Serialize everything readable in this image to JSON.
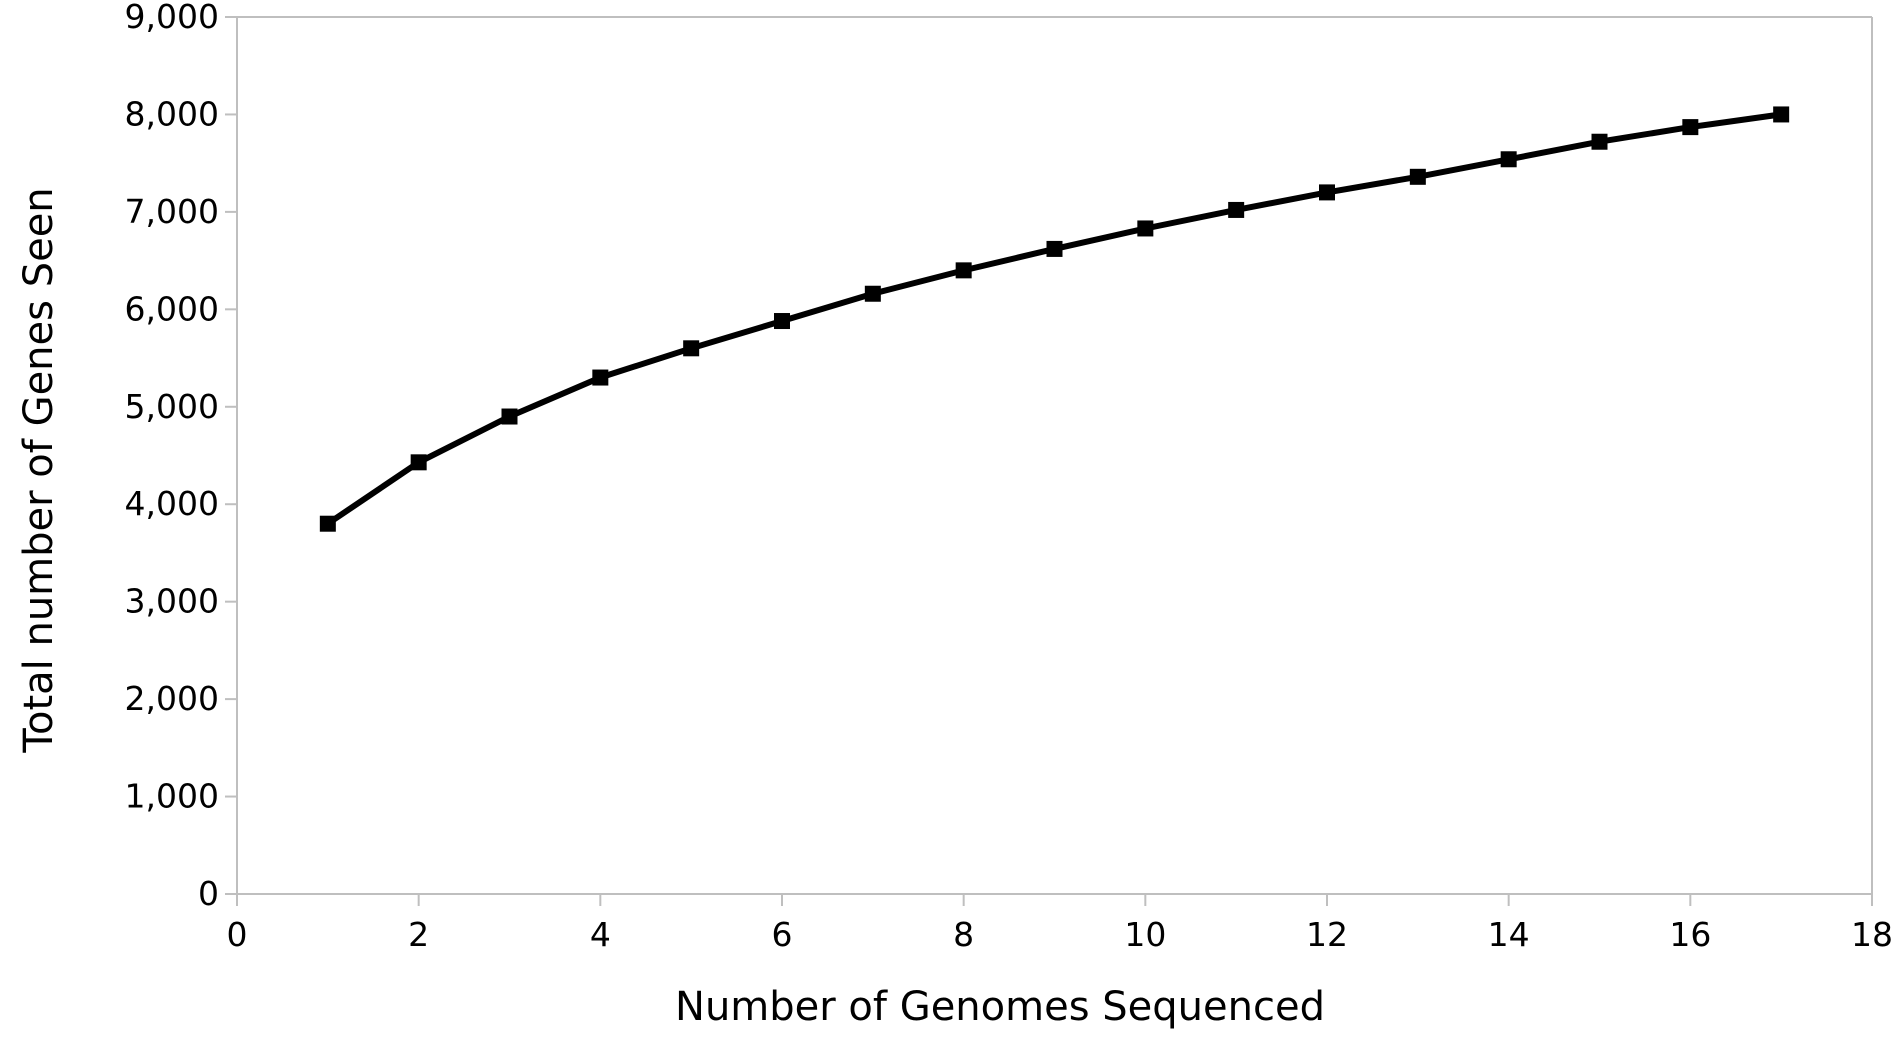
{
  "chart_data": {
    "type": "line",
    "title": "",
    "xlabel": "Number of Genomes Sequenced",
    "ylabel": "Total number of Genes Seen",
    "xlim": [
      0,
      18
    ],
    "ylim": [
      0,
      9000
    ],
    "x_ticks": [
      0,
      2,
      4,
      6,
      8,
      10,
      12,
      14,
      16,
      18
    ],
    "x_tick_labels": [
      "0",
      "2",
      "4",
      "6",
      "8",
      "10",
      "12",
      "14",
      "16",
      "18"
    ],
    "y_ticks": [
      0,
      1000,
      2000,
      3000,
      4000,
      5000,
      6000,
      7000,
      8000,
      9000
    ],
    "y_tick_labels": [
      "0",
      "1,000",
      "2,000",
      "3,000",
      "4,000",
      "5,000",
      "6,000",
      "7,000",
      "8,000",
      "9,000"
    ],
    "grid": false,
    "legend": "none",
    "marker": "square",
    "colors": {
      "line": "#000000",
      "axis": "#bfbfbf",
      "background": "#ffffff"
    },
    "series": [
      {
        "x": [
          1,
          2,
          3,
          4,
          5,
          6,
          7,
          8,
          9,
          10,
          11,
          12,
          13,
          14,
          15,
          16,
          17
        ],
        "y": [
          3800,
          4430,
          4900,
          5300,
          5600,
          5880,
          6160,
          6400,
          6620,
          6830,
          7020,
          7200,
          7360,
          7540,
          7720,
          7870,
          8000
        ]
      }
    ]
  }
}
